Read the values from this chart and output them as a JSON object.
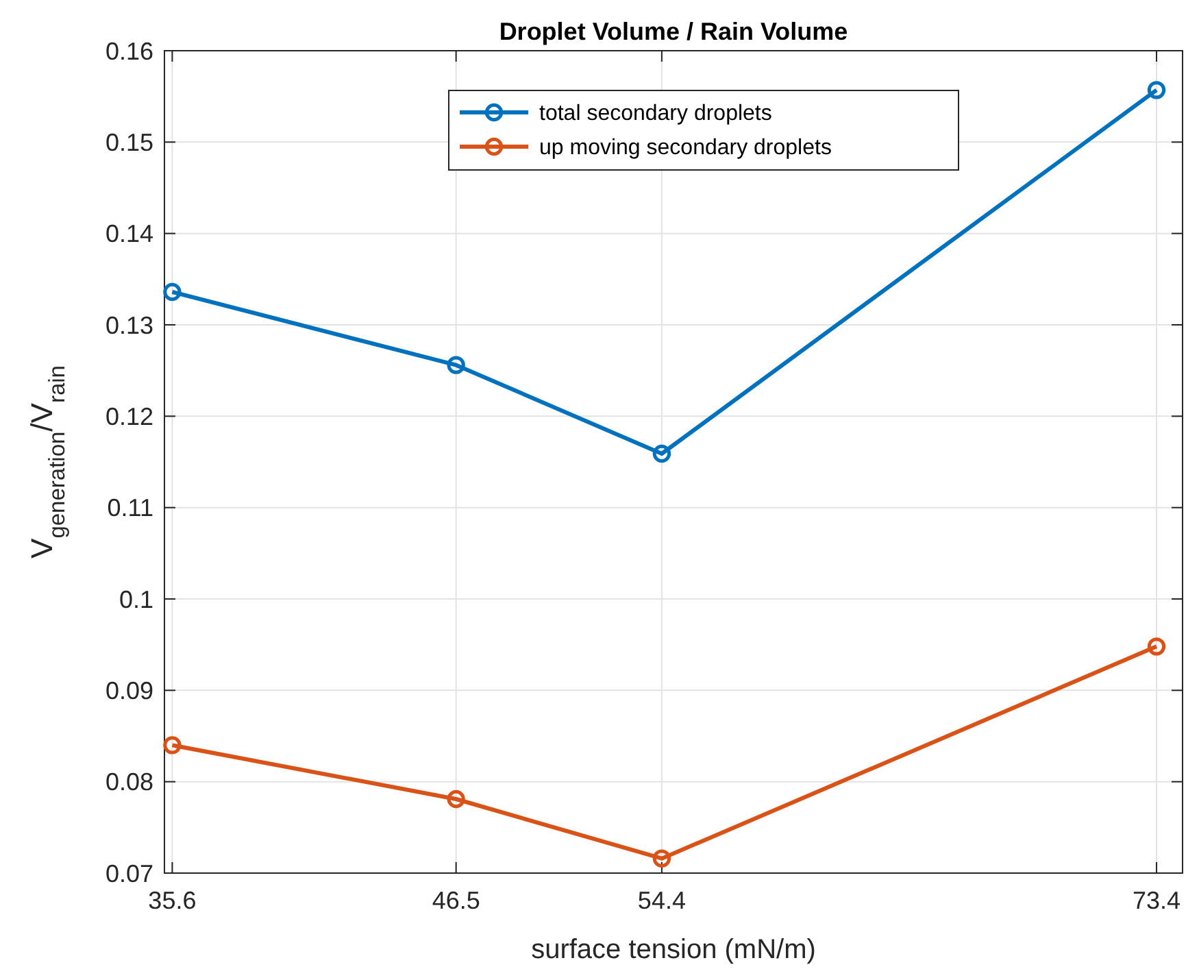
{
  "chart_data": {
    "type": "line",
    "title": "Droplet Volume / Rain Volume",
    "xlabel": "surface tension (mN/m)",
    "ylabel": "V$_{generation}$/V$_{rain}$",
    "x": [
      35.6,
      46.5,
      54.4,
      73.4
    ],
    "series": [
      {
        "name": "total secondary droplets",
        "color": "#0072bd",
        "values": [
          0.1336,
          0.1256,
          0.1159,
          0.1557
        ]
      },
      {
        "name": "up moving secondary droplets",
        "color": "#d95319",
        "values": [
          0.084,
          0.0781,
          0.0716,
          0.0948
        ]
      }
    ],
    "xlim": [
      35.3,
      74.4
    ],
    "xticks": [
      35.6,
      46.5,
      54.4,
      73.4
    ],
    "ylim": [
      0.07,
      0.16
    ],
    "yticks": [
      0.07,
      0.08,
      0.09,
      0.1,
      0.11,
      0.12,
      0.13,
      0.14,
      0.15,
      0.16
    ],
    "grid": true,
    "legend": "top",
    "marker": "circle",
    "line_style": "solid"
  }
}
